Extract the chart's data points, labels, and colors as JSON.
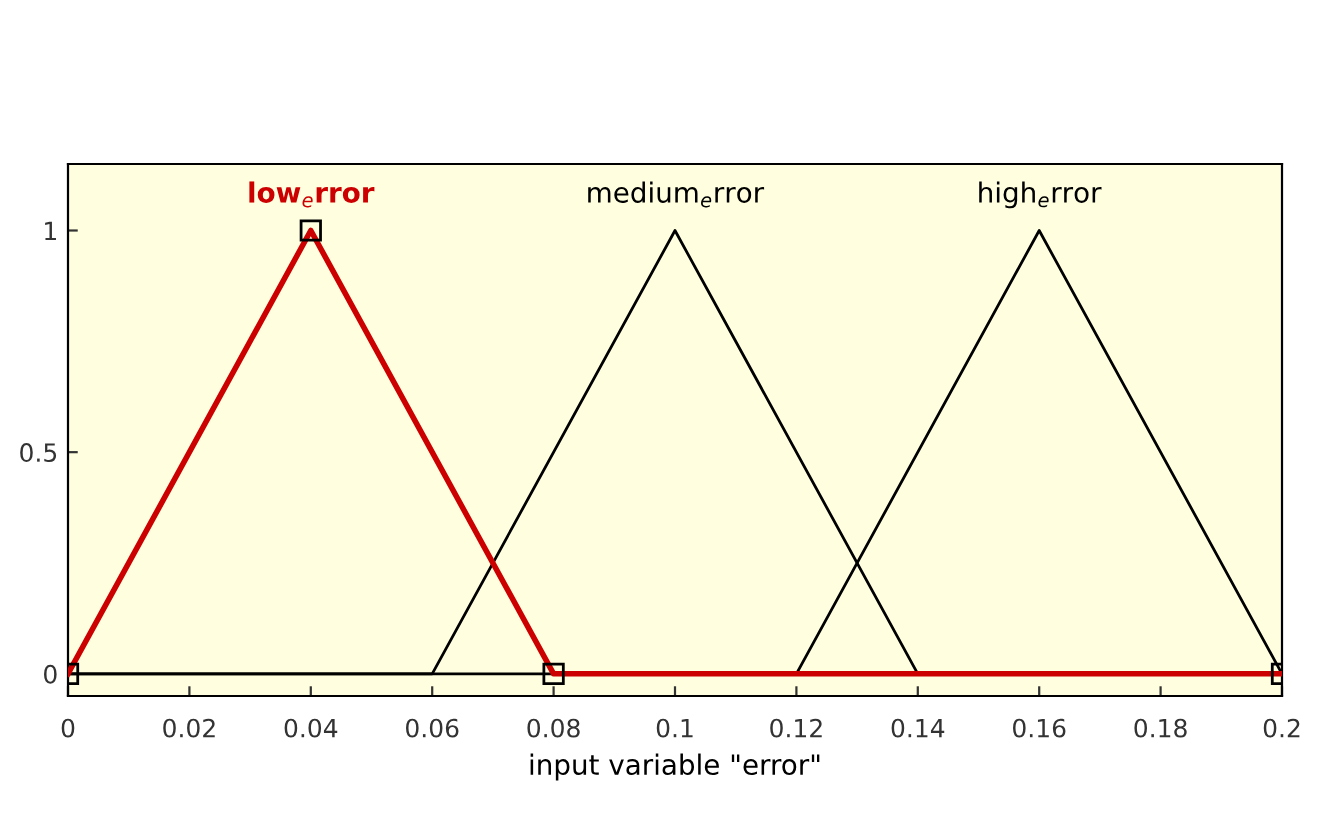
{
  "chart_data": {
    "type": "line",
    "xlabel": "input variable \"error\"",
    "xlim": [
      0,
      0.2
    ],
    "xticks": [
      0,
      0.02,
      0.04,
      0.06,
      0.08,
      0.1,
      0.12,
      0.14,
      0.16,
      0.18,
      0.2
    ],
    "ylim": [
      -0.05,
      1.15
    ],
    "yticks": [
      0,
      0.5,
      1
    ],
    "grid": false,
    "legend": false,
    "line_style": "solid",
    "series": [
      {
        "name": "low$_{e}$rror",
        "color": "#cc0000",
        "x": [
          0,
          0.04,
          0.08,
          0.2
        ],
        "values": [
          0,
          1,
          0,
          0
        ],
        "marker": "square"
      },
      {
        "name": "medium$_{e}$rror",
        "color": "#000000",
        "x": [
          0,
          0.06,
          0.1,
          0.14,
          0.2
        ],
        "values": [
          0,
          0,
          1,
          0,
          0
        ],
        "marker": "none"
      },
      {
        "name": "high$_{e}$rror",
        "color": "#000000",
        "x": [
          0,
          0.12,
          0.16,
          0.2
        ],
        "values": [
          0,
          0,
          1,
          0
        ],
        "marker": "none"
      }
    ]
  }
}
